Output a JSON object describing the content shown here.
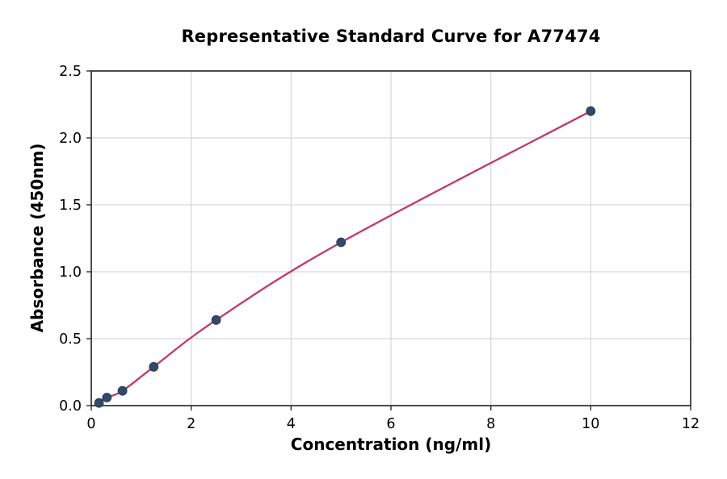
{
  "chart_data": {
    "type": "scatter",
    "title": "Representative Standard Curve for A77474",
    "xlabel": "Concentration (ng/ml)",
    "ylabel": "Absorbance (450nm)",
    "x": [
      0.156,
      0.3125,
      0.625,
      1.25,
      2.5,
      5,
      10
    ],
    "y": [
      0.02,
      0.06,
      0.11,
      0.29,
      0.64,
      1.22,
      2.2
    ],
    "fit_curve": "smooth curve through all points, drawn from first to last point",
    "xlim": [
      0,
      12
    ],
    "ylim": [
      0,
      2.5
    ],
    "xticks": [
      0,
      2,
      4,
      6,
      8,
      10,
      12
    ],
    "xtick_labels": [
      "0",
      "2",
      "4",
      "6",
      "8",
      "10",
      "12"
    ],
    "yticks": [
      0,
      0.5,
      1.0,
      1.5,
      2.0,
      2.5
    ],
    "ytick_labels": [
      "0.0",
      "0.5",
      "1.0",
      "1.5",
      "2.0",
      "2.5"
    ],
    "grid": true,
    "legend": "none",
    "colors": {
      "line": "#c23a63",
      "marker_fill": "#33496a",
      "marker_edge": "#263a55",
      "grid": "#d6d6d6",
      "spine": "#2f2f2f",
      "tick_text": "#000000",
      "background": "#ffffff"
    }
  }
}
